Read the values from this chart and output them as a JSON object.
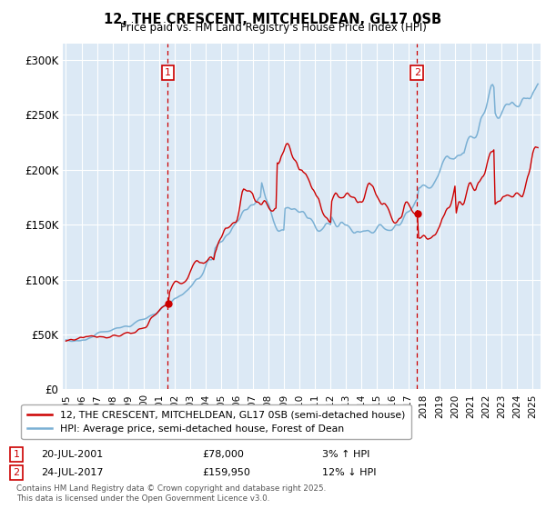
{
  "title": "12, THE CRESCENT, MITCHELDEAN, GL17 0SB",
  "subtitle": "Price paid vs. HM Land Registry's House Price Index (HPI)",
  "yticks_labels": [
    "£0",
    "£50K",
    "£100K",
    "£150K",
    "£200K",
    "£250K",
    "£300K"
  ],
  "yticks_values": [
    0,
    50000,
    100000,
    150000,
    200000,
    250000,
    300000
  ],
  "ylim": [
    0,
    315000
  ],
  "xlim_start": 1994.8,
  "xlim_end": 2025.5,
  "hpi_color": "#7ab0d4",
  "price_color": "#cc0000",
  "marker1_date": 2001.55,
  "marker1_price": 78000,
  "marker1_label": "1",
  "marker2_date": 2017.56,
  "marker2_price": 159950,
  "marker2_label": "2",
  "legend_line1": "12, THE CRESCENT, MITCHELDEAN, GL17 0SB (semi-detached house)",
  "legend_line2": "HPI: Average price, semi-detached house, Forest of Dean",
  "annotation1_date": "20-JUL-2001",
  "annotation1_price": "£78,000",
  "annotation1_hpi": "3% ↑ HPI",
  "annotation2_date": "24-JUL-2017",
  "annotation2_price": "£159,950",
  "annotation2_hpi": "12% ↓ HPI",
  "footer": "Contains HM Land Registry data © Crown copyright and database right 2025.\nThis data is licensed under the Open Government Licence v3.0.",
  "background_color": "#dce9f5",
  "grid_color": "#ffffff"
}
